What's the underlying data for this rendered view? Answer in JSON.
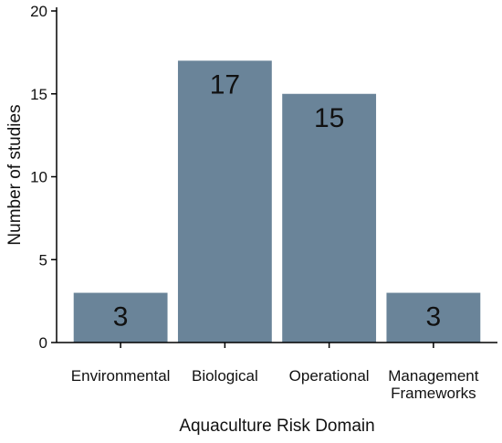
{
  "chart_data": {
    "type": "bar",
    "title": "",
    "xlabel": "Aquaculture Risk Domain",
    "ylabel": "Number of studies",
    "categories": [
      "Environmental",
      "Biological",
      "Operational",
      "Management Frameworks"
    ],
    "category_lines": [
      [
        "Environmental"
      ],
      [
        "Biological"
      ],
      [
        "Operational"
      ],
      [
        "Management",
        "Frameworks"
      ]
    ],
    "values": [
      3,
      17,
      15,
      3
    ],
    "data_labels": [
      "3",
      "17",
      "15",
      "3"
    ],
    "ylim": [
      0,
      20
    ],
    "yticks": [
      0,
      5,
      10,
      15,
      20
    ],
    "ytick_labels": [
      "0",
      "5",
      "10",
      "15",
      "20"
    ],
    "bar_color": "#6a8499",
    "grid": false,
    "legend": "none"
  }
}
